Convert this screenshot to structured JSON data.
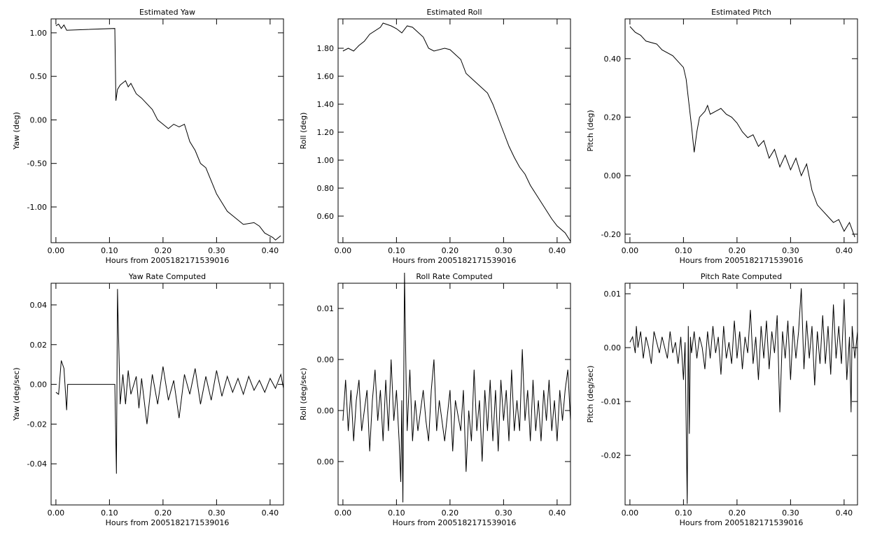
{
  "chart_data": [
    {
      "type": "line",
      "title": "Estimated Yaw",
      "xlabel": "Hours from 2005182171539016",
      "ylabel": "Yaw (deg)",
      "color": "#000000",
      "x": [
        0,
        0.005,
        0.01,
        0.015,
        0.02,
        0.11,
        0.112,
        0.115,
        0.12,
        0.13,
        0.135,
        0.14,
        0.15,
        0.16,
        0.18,
        0.19,
        0.2,
        0.21,
        0.22,
        0.23,
        0.24,
        0.25,
        0.26,
        0.27,
        0.28,
        0.29,
        0.3,
        0.31,
        0.32,
        0.33,
        0.34,
        0.35,
        0.37,
        0.38,
        0.39,
        0.405,
        0.41,
        0.42
      ],
      "values": [
        1.08,
        1.1,
        1.05,
        1.09,
        1.03,
        1.05,
        0.22,
        0.35,
        0.4,
        0.45,
        0.38,
        0.42,
        0.3,
        0.25,
        0.12,
        0.0,
        -0.05,
        -0.1,
        -0.05,
        -0.08,
        -0.05,
        -0.25,
        -0.35,
        -0.5,
        -0.55,
        -0.7,
        -0.85,
        -0.95,
        -1.05,
        -1.1,
        -1.15,
        -1.2,
        -1.18,
        -1.22,
        -1.3,
        -1.35,
        -1.38,
        -1.33
      ],
      "xlim": [
        -0.009,
        0.425
      ],
      "ylim": [
        -1.41,
        1.16
      ],
      "xticks": [
        {
          "value": 0,
          "label": "0.00"
        },
        {
          "value": 0.1,
          "label": "0.10"
        },
        {
          "value": 0.2,
          "label": "0.20"
        },
        {
          "value": 0.3,
          "label": "0.30"
        },
        {
          "value": 0.4,
          "label": "0.40"
        }
      ],
      "yticks": [
        {
          "value": -1,
          "label": "-1.00"
        },
        {
          "value": -0.5,
          "label": "-0.50"
        },
        {
          "value": 0,
          "label": "0.00"
        },
        {
          "value": 0.5,
          "label": "0.50"
        },
        {
          "value": 1,
          "label": "1.00"
        }
      ]
    },
    {
      "type": "line",
      "title": "Estimated Roll",
      "xlabel": "Hours from 2005182171539016",
      "ylabel": "Roll (deg)",
      "color": "#000000",
      "x": [
        0,
        0.01,
        0.02,
        0.03,
        0.04,
        0.05,
        0.07,
        0.075,
        0.09,
        0.1,
        0.11,
        0.12,
        0.13,
        0.15,
        0.16,
        0.17,
        0.19,
        0.2,
        0.22,
        0.23,
        0.25,
        0.27,
        0.28,
        0.29,
        0.3,
        0.31,
        0.32,
        0.33,
        0.34,
        0.35,
        0.36,
        0.37,
        0.38,
        0.39,
        0.4,
        0.415,
        0.425
      ],
      "values": [
        1.78,
        1.8,
        1.78,
        1.82,
        1.85,
        1.9,
        1.95,
        1.98,
        1.96,
        1.94,
        1.91,
        1.96,
        1.95,
        1.88,
        1.8,
        1.78,
        1.8,
        1.79,
        1.72,
        1.62,
        1.55,
        1.48,
        1.4,
        1.3,
        1.2,
        1.1,
        1.02,
        0.95,
        0.9,
        0.82,
        0.76,
        0.7,
        0.64,
        0.58,
        0.53,
        0.48,
        0.42
      ],
      "xlim": [
        -0.009,
        0.425
      ],
      "ylim": [
        0.41,
        2.01
      ],
      "xticks": [
        {
          "value": 0,
          "label": "0.00"
        },
        {
          "value": 0.1,
          "label": "0.10"
        },
        {
          "value": 0.2,
          "label": "0.20"
        },
        {
          "value": 0.3,
          "label": "0.30"
        },
        {
          "value": 0.4,
          "label": "0.40"
        }
      ],
      "yticks": [
        {
          "value": 0.6,
          "label": "0.60"
        },
        {
          "value": 0.8,
          "label": "0.80"
        },
        {
          "value": 1,
          "label": "1.00"
        },
        {
          "value": 1.2,
          "label": "1.20"
        },
        {
          "value": 1.4,
          "label": "1.40"
        },
        {
          "value": 1.6,
          "label": "1.60"
        },
        {
          "value": 1.8,
          "label": "1.80"
        }
      ]
    },
    {
      "type": "line",
      "title": "Estimated Pitch",
      "xlabel": "Hours from 2005182171539016",
      "ylabel": "Pitch (deg)",
      "color": "#000000",
      "x": [
        0,
        0.01,
        0.02,
        0.03,
        0.05,
        0.06,
        0.08,
        0.09,
        0.1,
        0.105,
        0.11,
        0.115,
        0.12,
        0.125,
        0.13,
        0.14,
        0.145,
        0.15,
        0.16,
        0.17,
        0.18,
        0.19,
        0.2,
        0.21,
        0.22,
        0.23,
        0.24,
        0.25,
        0.26,
        0.27,
        0.28,
        0.29,
        0.3,
        0.31,
        0.32,
        0.33,
        0.34,
        0.35,
        0.36,
        0.37,
        0.38,
        0.39,
        0.4,
        0.41,
        0.42
      ],
      "values": [
        0.51,
        0.49,
        0.48,
        0.46,
        0.45,
        0.43,
        0.41,
        0.39,
        0.37,
        0.33,
        0.25,
        0.17,
        0.08,
        0.15,
        0.2,
        0.22,
        0.24,
        0.21,
        0.22,
        0.23,
        0.21,
        0.2,
        0.18,
        0.15,
        0.13,
        0.14,
        0.1,
        0.12,
        0.06,
        0.09,
        0.03,
        0.07,
        0.02,
        0.06,
        0.0,
        0.04,
        -0.05,
        -0.1,
        -0.12,
        -0.14,
        -0.16,
        -0.15,
        -0.19,
        -0.16,
        -0.21
      ],
      "xlim": [
        -0.009,
        0.425
      ],
      "ylim": [
        -0.229,
        0.536
      ],
      "xticks": [
        {
          "value": 0,
          "label": "0.00"
        },
        {
          "value": 0.1,
          "label": "0.10"
        },
        {
          "value": 0.2,
          "label": "0.20"
        },
        {
          "value": 0.3,
          "label": "0.30"
        },
        {
          "value": 0.4,
          "label": "0.40"
        }
      ],
      "yticks": [
        {
          "value": -0.2,
          "label": "-0.20"
        },
        {
          "value": 0,
          "label": "0.00"
        },
        {
          "value": 0.2,
          "label": "0.20"
        },
        {
          "value": 0.4,
          "label": "0.40"
        }
      ]
    },
    {
      "type": "line",
      "title": "Yaw Rate Computed",
      "xlabel": "Hours from 2005182171539016",
      "ylabel": "Yaw (deg/sec)",
      "color": "#000000",
      "x": [
        0,
        0.005,
        0.01,
        0.015,
        0.02,
        0.022,
        0.11,
        0.113,
        0.115,
        0.116,
        0.12,
        0.125,
        0.13,
        0.135,
        0.14,
        0.15,
        0.155,
        0.16,
        0.17,
        0.18,
        0.19,
        0.2,
        0.21,
        0.22,
        0.23,
        0.24,
        0.25,
        0.26,
        0.27,
        0.28,
        0.29,
        0.3,
        0.31,
        0.32,
        0.33,
        0.34,
        0.35,
        0.36,
        0.37,
        0.38,
        0.39,
        0.4,
        0.41,
        0.42,
        0.425
      ],
      "values": [
        -0.004,
        -0.005,
        0.012,
        0.008,
        -0.013,
        0,
        0,
        -0.045,
        0.048,
        0.035,
        -0.01,
        0.005,
        -0.01,
        0.007,
        -0.005,
        0.004,
        -0.012,
        0.003,
        -0.02,
        0.005,
        -0.01,
        0.009,
        -0.008,
        0.002,
        -0.017,
        0.005,
        -0.005,
        0.008,
        -0.01,
        0.004,
        -0.008,
        0.007,
        -0.006,
        0.004,
        -0.004,
        0.003,
        -0.005,
        0.004,
        -0.003,
        0.002,
        -0.004,
        0.003,
        -0.002,
        0.005,
        -0.002
      ],
      "xlim": [
        -0.009,
        0.425
      ],
      "ylim": [
        -0.0607,
        0.0509
      ],
      "xticks": [
        {
          "value": 0,
          "label": "0.00"
        },
        {
          "value": 0.1,
          "label": "0.10"
        },
        {
          "value": 0.2,
          "label": "0.20"
        },
        {
          "value": 0.3,
          "label": "0.30"
        },
        {
          "value": 0.4,
          "label": "0.40"
        }
      ],
      "yticks": [
        {
          "value": -0.04,
          "label": "-0.04"
        },
        {
          "value": -0.02,
          "label": "-0.02"
        },
        {
          "value": 0,
          "label": "0.00"
        },
        {
          "value": 0.02,
          "label": "0.02"
        },
        {
          "value": 0.04,
          "label": "0.04"
        }
      ]
    },
    {
      "type": "line",
      "title": "Roll Rate Computed",
      "xlabel": "Hours from 2005182171539016",
      "ylabel": "Roll (deg/sec)",
      "color": "#000000",
      "x": [
        0,
        0.005,
        0.01,
        0.015,
        0.02,
        0.025,
        0.03,
        0.035,
        0.04,
        0.045,
        0.05,
        0.055,
        0.06,
        0.065,
        0.07,
        0.075,
        0.08,
        0.085,
        0.09,
        0.095,
        0.1,
        0.105,
        0.108,
        0.11,
        0.112,
        0.115,
        0.118,
        0.12,
        0.125,
        0.13,
        0.135,
        0.14,
        0.15,
        0.155,
        0.16,
        0.165,
        0.17,
        0.175,
        0.18,
        0.19,
        0.2,
        0.205,
        0.21,
        0.22,
        0.225,
        0.23,
        0.235,
        0.24,
        0.245,
        0.25,
        0.255,
        0.26,
        0.265,
        0.27,
        0.275,
        0.28,
        0.285,
        0.29,
        0.295,
        0.3,
        0.305,
        0.31,
        0.315,
        0.32,
        0.325,
        0.33,
        0.335,
        0.34,
        0.345,
        0.35,
        0.355,
        0.36,
        0.365,
        0.37,
        0.375,
        0.38,
        0.385,
        0.39,
        0.395,
        0.4,
        0.405,
        0.41,
        0.415,
        0.42,
        0.425
      ],
      "values": [
        -0.001,
        0.003,
        -0.002,
        0.002,
        -0.003,
        0.001,
        0.003,
        -0.002,
        0.0,
        0.002,
        -0.004,
        0.001,
        0.004,
        -0.001,
        0.002,
        -0.003,
        0.003,
        -0.002,
        0.005,
        -0.001,
        0.002,
        -0.003,
        -0.007,
        0.001,
        -0.009,
        0.0135,
        0.003,
        -0.002,
        0.004,
        -0.003,
        0.001,
        -0.002,
        0.002,
        -0.001,
        -0.003,
        0.002,
        0.005,
        -0.002,
        0.001,
        -0.003,
        0.002,
        -0.004,
        0.001,
        -0.002,
        0.002,
        -0.006,
        0.0,
        -0.003,
        0.004,
        -0.002,
        0.001,
        -0.005,
        0.002,
        -0.002,
        0.003,
        -0.003,
        0.002,
        -0.004,
        0.003,
        -0.001,
        0.002,
        -0.003,
        0.004,
        -0.002,
        0.001,
        -0.002,
        0.006,
        -0.001,
        0.002,
        -0.003,
        0.003,
        -0.002,
        0.001,
        -0.003,
        0.002,
        -0.001,
        0.003,
        -0.002,
        0.001,
        -0.003,
        0.002,
        -0.001,
        0.002,
        0.004,
        -0.001
      ],
      "xlim": [
        -0.009,
        0.425
      ],
      "ylim": [
        -0.00925,
        0.01247
      ],
      "xticks": [
        {
          "value": 0,
          "label": "0.00"
        },
        {
          "value": 0.1,
          "label": "0.10"
        },
        {
          "value": 0.2,
          "label": "0.20"
        },
        {
          "value": 0.3,
          "label": "0.30"
        },
        {
          "value": 0.4,
          "label": "0.40"
        }
      ],
      "yticks": [
        {
          "value": -0.005,
          "label": "0.00"
        },
        {
          "value": 0,
          "label": "0.00"
        },
        {
          "value": 0.005,
          "label": "0.00"
        },
        {
          "value": 0.01,
          "label": "0.01"
        }
      ]
    },
    {
      "type": "line",
      "title": "Pitch Rate Computed",
      "xlabel": "Hours from 2005182171539016",
      "ylabel": "Pitch (deg/sec)",
      "color": "#000000",
      "x": [
        0,
        0.005,
        0.01,
        0.012,
        0.015,
        0.02,
        0.025,
        0.03,
        0.035,
        0.04,
        0.045,
        0.05,
        0.055,
        0.06,
        0.065,
        0.07,
        0.075,
        0.08,
        0.085,
        0.09,
        0.095,
        0.1,
        0.103,
        0.107,
        0.109,
        0.111,
        0.113,
        0.115,
        0.12,
        0.125,
        0.13,
        0.135,
        0.14,
        0.145,
        0.15,
        0.155,
        0.16,
        0.165,
        0.17,
        0.175,
        0.18,
        0.185,
        0.19,
        0.195,
        0.2,
        0.205,
        0.21,
        0.215,
        0.22,
        0.225,
        0.23,
        0.235,
        0.24,
        0.245,
        0.25,
        0.255,
        0.26,
        0.265,
        0.27,
        0.275,
        0.28,
        0.285,
        0.29,
        0.295,
        0.3,
        0.305,
        0.31,
        0.315,
        0.32,
        0.325,
        0.33,
        0.335,
        0.34,
        0.345,
        0.35,
        0.355,
        0.36,
        0.365,
        0.37,
        0.375,
        0.38,
        0.385,
        0.39,
        0.395,
        0.4,
        0.405,
        0.41,
        0.413,
        0.415,
        0.42,
        0.425
      ],
      "values": [
        0.001,
        0.002,
        -0.001,
        0.004,
        0.0,
        0.003,
        -0.002,
        0.002,
        0.0,
        -0.003,
        0.003,
        0.001,
        -0.001,
        0.002,
        0.0,
        -0.002,
        0.003,
        -0.001,
        0.001,
        -0.003,
        0.002,
        -0.006,
        0.001,
        -0.029,
        0.004,
        -0.016,
        0.002,
        -0.001,
        0.003,
        -0.002,
        0.002,
        0.0,
        -0.004,
        0.003,
        -0.002,
        0.004,
        -0.001,
        0.002,
        -0.005,
        0.004,
        -0.002,
        0.001,
        -0.003,
        0.005,
        -0.002,
        0.003,
        -0.004,
        0.002,
        -0.001,
        0.007,
        -0.003,
        0.002,
        -0.006,
        0.004,
        -0.002,
        0.005,
        -0.004,
        0.003,
        -0.001,
        0.006,
        -0.012,
        0.003,
        -0.002,
        0.005,
        -0.006,
        0.004,
        -0.002,
        0.003,
        0.011,
        -0.004,
        0.005,
        -0.002,
        0.004,
        -0.007,
        0.003,
        -0.003,
        0.006,
        -0.003,
        0.004,
        -0.005,
        0.008,
        -0.002,
        0.004,
        -0.003,
        0.009,
        -0.006,
        0.002,
        -0.012,
        0.004,
        -0.002,
        0.003
      ],
      "xlim": [
        -0.009,
        0.425
      ],
      "ylim": [
        -0.0292,
        0.01195
      ],
      "xticks": [
        {
          "value": 0,
          "label": "0.00"
        },
        {
          "value": 0.1,
          "label": "0.10"
        },
        {
          "value": 0.2,
          "label": "0.20"
        },
        {
          "value": 0.3,
          "label": "0.30"
        },
        {
          "value": 0.4,
          "label": "0.40"
        }
      ],
      "yticks": [
        {
          "value": -0.02,
          "label": "-0.02"
        },
        {
          "value": -0.01,
          "label": "-0.01"
        },
        {
          "value": 0,
          "label": "0.00"
        },
        {
          "value": 0.01,
          "label": "0.01"
        }
      ]
    }
  ]
}
